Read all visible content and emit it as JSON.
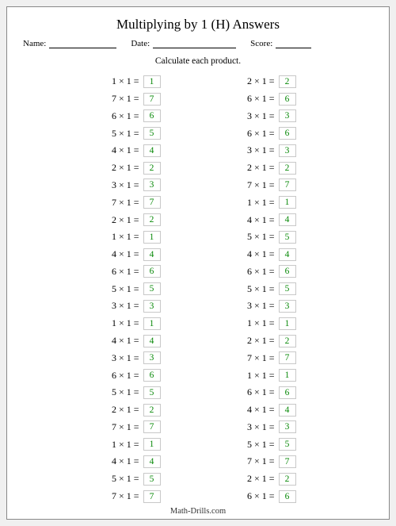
{
  "title": "Multiplying by 1 (H) Answers",
  "meta": {
    "name_label": "Name:",
    "date_label": "Date:",
    "score_label": "Score:"
  },
  "instruction": "Calculate each product.",
  "operator": "×",
  "equals": "=",
  "columns": {
    "left": [
      {
        "a": 1,
        "b": 1,
        "ans": 1
      },
      {
        "a": 7,
        "b": 1,
        "ans": 7
      },
      {
        "a": 6,
        "b": 1,
        "ans": 6
      },
      {
        "a": 5,
        "b": 1,
        "ans": 5
      },
      {
        "a": 4,
        "b": 1,
        "ans": 4
      },
      {
        "a": 2,
        "b": 1,
        "ans": 2
      },
      {
        "a": 3,
        "b": 1,
        "ans": 3
      },
      {
        "a": 7,
        "b": 1,
        "ans": 7
      },
      {
        "a": 2,
        "b": 1,
        "ans": 2
      },
      {
        "a": 1,
        "b": 1,
        "ans": 1
      },
      {
        "a": 4,
        "b": 1,
        "ans": 4
      },
      {
        "a": 6,
        "b": 1,
        "ans": 6
      },
      {
        "a": 5,
        "b": 1,
        "ans": 5
      },
      {
        "a": 3,
        "b": 1,
        "ans": 3
      },
      {
        "a": 1,
        "b": 1,
        "ans": 1
      },
      {
        "a": 4,
        "b": 1,
        "ans": 4
      },
      {
        "a": 3,
        "b": 1,
        "ans": 3
      },
      {
        "a": 6,
        "b": 1,
        "ans": 6
      },
      {
        "a": 5,
        "b": 1,
        "ans": 5
      },
      {
        "a": 2,
        "b": 1,
        "ans": 2
      },
      {
        "a": 7,
        "b": 1,
        "ans": 7
      },
      {
        "a": 1,
        "b": 1,
        "ans": 1
      },
      {
        "a": 4,
        "b": 1,
        "ans": 4
      },
      {
        "a": 5,
        "b": 1,
        "ans": 5
      },
      {
        "a": 7,
        "b": 1,
        "ans": 7
      }
    ],
    "right": [
      {
        "a": 2,
        "b": 1,
        "ans": 2
      },
      {
        "a": 6,
        "b": 1,
        "ans": 6
      },
      {
        "a": 3,
        "b": 1,
        "ans": 3
      },
      {
        "a": 6,
        "b": 1,
        "ans": 6
      },
      {
        "a": 3,
        "b": 1,
        "ans": 3
      },
      {
        "a": 2,
        "b": 1,
        "ans": 2
      },
      {
        "a": 7,
        "b": 1,
        "ans": 7
      },
      {
        "a": 1,
        "b": 1,
        "ans": 1
      },
      {
        "a": 4,
        "b": 1,
        "ans": 4
      },
      {
        "a": 5,
        "b": 1,
        "ans": 5
      },
      {
        "a": 4,
        "b": 1,
        "ans": 4
      },
      {
        "a": 6,
        "b": 1,
        "ans": 6
      },
      {
        "a": 5,
        "b": 1,
        "ans": 5
      },
      {
        "a": 3,
        "b": 1,
        "ans": 3
      },
      {
        "a": 1,
        "b": 1,
        "ans": 1
      },
      {
        "a": 2,
        "b": 1,
        "ans": 2
      },
      {
        "a": 7,
        "b": 1,
        "ans": 7
      },
      {
        "a": 1,
        "b": 1,
        "ans": 1
      },
      {
        "a": 6,
        "b": 1,
        "ans": 6
      },
      {
        "a": 4,
        "b": 1,
        "ans": 4
      },
      {
        "a": 3,
        "b": 1,
        "ans": 3
      },
      {
        "a": 5,
        "b": 1,
        "ans": 5
      },
      {
        "a": 7,
        "b": 1,
        "ans": 7
      },
      {
        "a": 2,
        "b": 1,
        "ans": 2
      },
      {
        "a": 6,
        "b": 1,
        "ans": 6
      }
    ]
  },
  "footer": "Math-Drills.com",
  "style": {
    "answer_color": "#0a8a0a",
    "box_border": "#c8c8c8",
    "page_border": "#888",
    "background": "#ffffff",
    "title_fontsize": 17,
    "body_fontsize": 12
  }
}
